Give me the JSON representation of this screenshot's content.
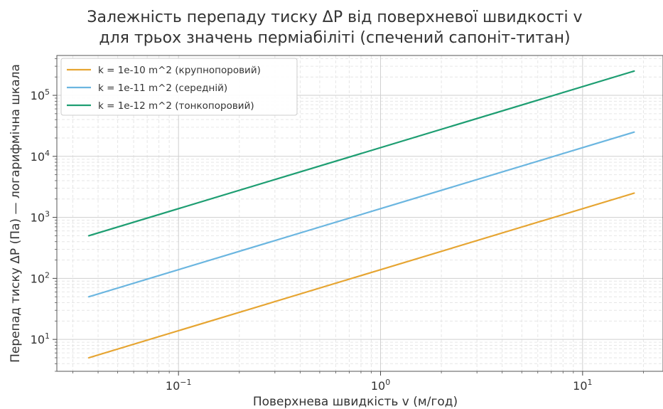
{
  "chart_data": {
    "type": "line",
    "title_lines": [
      "Залежність перепаду тиску ΔP від поверхневої швидкості v",
      "для трьох значень перміабіліті (спечений сапоніт-титан)"
    ],
    "xlabel": "Поверхнева швидкість v (м/год)",
    "ylabel": "Перепад тиску ΔP (Па) — логарифмічна шкала",
    "xscale": "log",
    "yscale": "log",
    "xlim": [
      0.025,
      25
    ],
    "ylim": [
      3,
      450000
    ],
    "grid": true,
    "legend_position": "top-left",
    "x_ticks": [
      {
        "value": 0.1,
        "label": "10",
        "exp": "−1"
      },
      {
        "value": 1,
        "label": "10",
        "exp": "0"
      },
      {
        "value": 10,
        "label": "10",
        "exp": "1"
      }
    ],
    "y_ticks": [
      {
        "value": 10,
        "label": "10",
        "exp": "1"
      },
      {
        "value": 100,
        "label": "10",
        "exp": "2"
      },
      {
        "value": 1000,
        "label": "10",
        "exp": "3"
      },
      {
        "value": 10000,
        "label": "10",
        "exp": "4"
      },
      {
        "value": 100000,
        "label": "10",
        "exp": "5"
      }
    ],
    "series": [
      {
        "name": "k = 1e-10 m^2 (крупнопоровий)",
        "color": "#E6A532",
        "x": [
          0.036,
          18
        ],
        "y": [
          5,
          2500
        ]
      },
      {
        "name": "k = 1e-11 m^2 (середній)",
        "color": "#6BB6E0",
        "x": [
          0.036,
          18
        ],
        "y": [
          50,
          25000
        ]
      },
      {
        "name": "k = 1e-12 m^2 (тонкопоровий)",
        "color": "#1E9E72",
        "x": [
          0.036,
          18
        ],
        "y": [
          500,
          250000
        ]
      }
    ]
  }
}
